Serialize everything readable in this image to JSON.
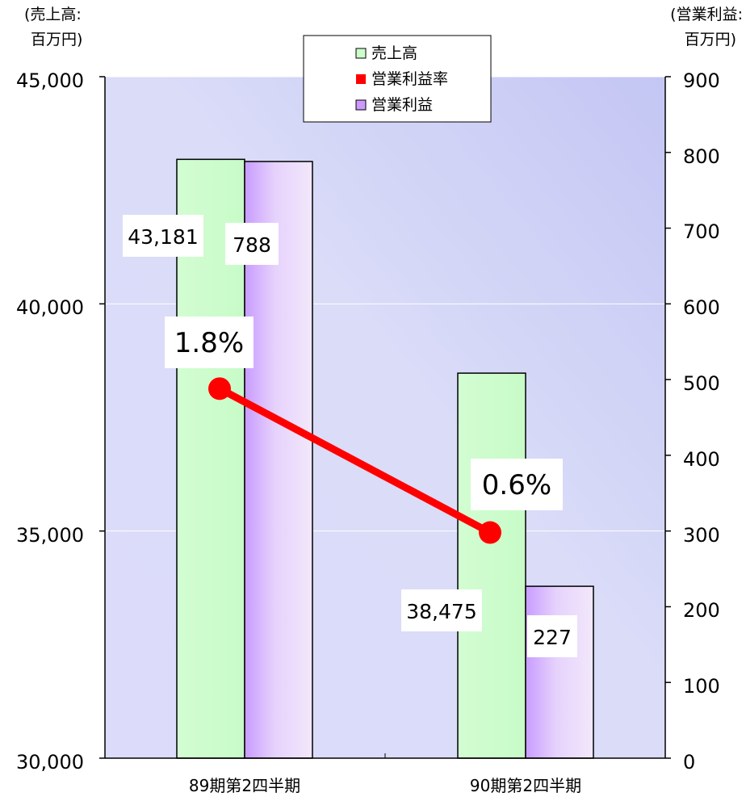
{
  "chart_data": {
    "type": "bar",
    "categories": [
      "89期第2四半期",
      "90期第2四半期"
    ],
    "left_axis": {
      "label_line1": "(売上高:",
      "label_line2": "百万円)",
      "ylim": [
        30000,
        45000
      ],
      "ticks": [
        "30,000",
        "35,000",
        "40,000",
        "45,000"
      ],
      "tick_values": [
        30000,
        35000,
        40000,
        45000
      ]
    },
    "right_axis": {
      "label_line1": "(営業利益:",
      "label_line2": "百万円)",
      "ylim": [
        0,
        900
      ],
      "ticks": [
        "0",
        "100",
        "200",
        "300",
        "400",
        "500",
        "600",
        "700",
        "800",
        "900"
      ],
      "tick_values": [
        0,
        100,
        200,
        300,
        400,
        500,
        600,
        700,
        800,
        900
      ]
    },
    "series": [
      {
        "name": "売上高",
        "axis": "left",
        "values": [
          43181,
          38475
        ],
        "labels": [
          "43,181",
          "38,475"
        ],
        "color": "#ccffcc"
      },
      {
        "name": "営業利益",
        "axis": "right",
        "values": [
          788,
          227
        ],
        "labels": [
          "788",
          "227"
        ],
        "color": "#cc99ff"
      },
      {
        "name": "営業利益率",
        "type": "line",
        "values": [
          1.8,
          0.6
        ],
        "labels": [
          "1.8%",
          "0.6%"
        ],
        "color": "#ff0000",
        "right_axis_position": [
          488,
          298
        ]
      }
    ],
    "legend": {
      "placement": "top-center",
      "entries": [
        "売上高",
        "営業利益率",
        "営業利益"
      ]
    },
    "grid": true
  }
}
